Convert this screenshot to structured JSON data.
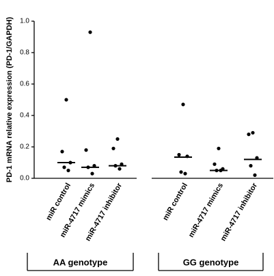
{
  "chart_data": {
    "type": "dot",
    "ylabel": "PD-1 mRNA relative expression (PD-1/GAPDH)",
    "ylim": [
      0,
      1
    ],
    "yticks": [
      {
        "value": 0,
        "label": "0.0"
      },
      0.2,
      0.4,
      0.6,
      0.8,
      {
        "value": 1,
        "label": "1.0"
      }
    ],
    "color": "#000000",
    "groups": [
      {
        "label": "AA genotype",
        "categories": [
          "miR control",
          "miR-4717 mimics",
          "miR-4717 inhibitor"
        ],
        "values": [
          [
            0.5,
            0.17,
            0.1,
            0.07,
            0.05
          ],
          [
            0.93,
            0.18,
            0.08,
            0.07,
            0.03
          ],
          [
            0.25,
            0.19,
            0.09,
            0.08,
            0.06
          ]
        ],
        "medians": [
          0.1,
          0.07,
          0.08
        ]
      },
      {
        "label": "GG genotype",
        "categories": [
          "miR control",
          "miR-4717 mimics",
          "miR-4717 inhibitor"
        ],
        "values": [
          [
            0.47,
            0.15,
            0.14,
            0.04,
            0.03
          ],
          [
            0.19,
            0.09,
            0.06,
            0.05,
            0.05
          ],
          [
            0.29,
            0.28,
            0.13,
            0.08,
            0.02
          ]
        ],
        "medians": [
          0.135,
          0.05,
          0.12
        ]
      }
    ]
  }
}
